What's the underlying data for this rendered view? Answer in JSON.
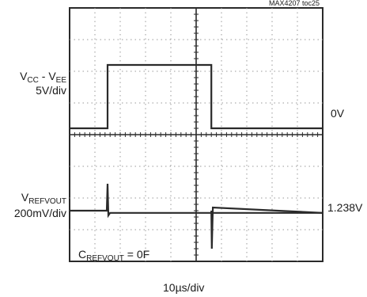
{
  "figure_id": "MAX4207 toc25",
  "chart_data": {
    "type": "oscilloscope",
    "grid": true,
    "divisions": {
      "x": 10,
      "y": 8
    },
    "time_scale": "10µs/div",
    "channels": [
      {
        "label_main": "V",
        "label_sub1": "CC",
        "label_mid": " - V",
        "label_sub2": "EE",
        "scale": "5V/div",
        "ref_label": "0V",
        "description": "supply step",
        "values_div": [
          [
            0,
            4.2
          ],
          [
            1.5,
            4.2
          ],
          [
            1.5,
            6.2
          ],
          [
            5.6,
            6.2
          ],
          [
            5.6,
            4.2
          ],
          [
            10,
            4.2
          ]
        ]
      },
      {
        "label_main": "V",
        "label_sub1": "REFVOUT",
        "scale": "200mV/div",
        "ref_label": "1.238V",
        "values_div": [
          [
            0,
            1.6
          ],
          [
            1.47,
            1.6
          ],
          [
            1.5,
            2.45
          ],
          [
            1.53,
            1.45
          ],
          [
            1.6,
            1.53
          ],
          [
            10,
            1.53
          ]
        ],
        "glitch_div": [
          [
            5.6,
            1.6
          ],
          [
            5.62,
            0.4
          ],
          [
            5.66,
            1.7
          ],
          [
            10,
            1.53
          ]
        ]
      }
    ],
    "annotation": {
      "main": "C",
      "sub": "REFVOUT",
      "rest": " = 0F"
    }
  }
}
